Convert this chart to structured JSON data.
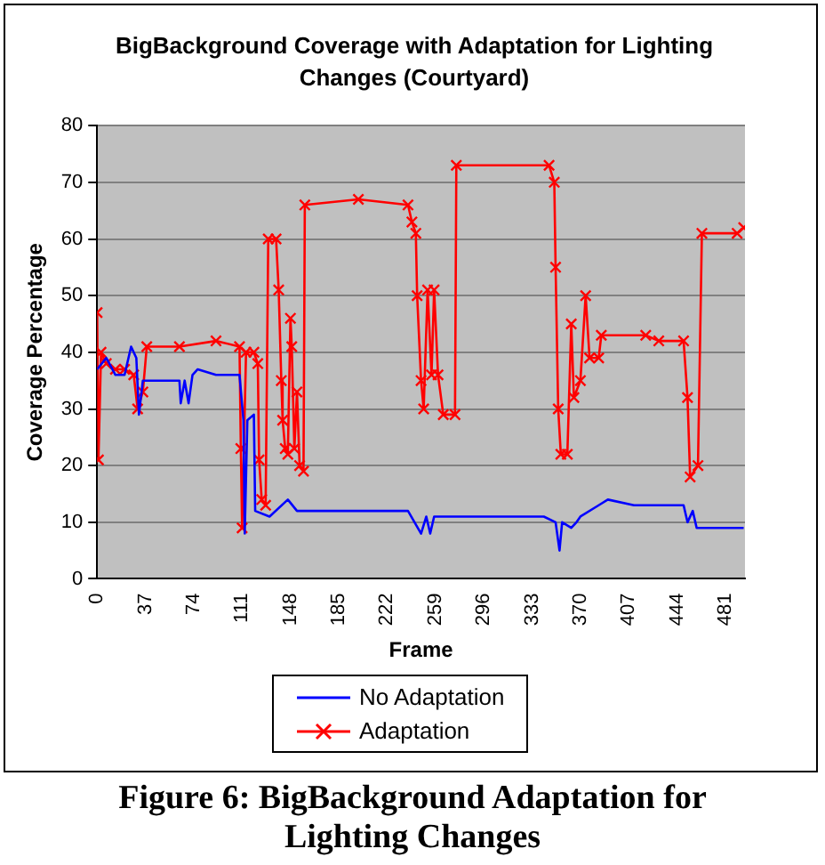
{
  "chart_data": {
    "type": "line",
    "title": "BigBackground Coverage with Adaptation for Lighting Changes (Courtyard)",
    "xlabel": "Frame",
    "ylabel": "Coverage Percentage",
    "xlim": [
      0,
      496
    ],
    "xticks": [
      0,
      37,
      74,
      111,
      148,
      185,
      222,
      259,
      296,
      333,
      370,
      407,
      444,
      481
    ],
    "ylim": [
      0,
      80
    ],
    "yticks": [
      0,
      10,
      20,
      30,
      40,
      50,
      60,
      70,
      80
    ],
    "grid": "y",
    "legend": "bottom",
    "annotations": [
      "Figure 6: BigBackground Adaptation for Lighting Changes"
    ],
    "series": [
      {
        "name": "No Adaptation",
        "color": "#0000ff",
        "marker": "none",
        "x": [
          0,
          7,
          14,
          21,
          26,
          30,
          32,
          35,
          42,
          63,
          64,
          67,
          70,
          73,
          77,
          91,
          109,
          112,
          113,
          115,
          120,
          121,
          132,
          146,
          153,
          238,
          248,
          252,
          255,
          258,
          342,
          351,
          354,
          356,
          363,
          367,
          370,
          384,
          391,
          411,
          449,
          452,
          456,
          459,
          467,
          495
        ],
        "values": [
          37,
          39,
          36,
          36,
          41,
          39,
          29,
          35,
          35,
          35,
          31,
          35,
          31,
          36,
          37,
          36,
          36,
          28,
          8,
          28,
          29,
          12,
          11,
          14,
          12,
          12,
          8,
          11,
          8,
          11,
          11,
          10,
          5,
          10,
          9,
          10,
          11,
          13,
          14,
          13,
          13,
          10,
          12,
          9,
          9,
          9
        ]
      },
      {
        "name": "Adaptation",
        "color": "#ff0000",
        "marker": "cross",
        "x": [
          0,
          1,
          3,
          7,
          14,
          21,
          28,
          31,
          35,
          38,
          63,
          91,
          109,
          110,
          111,
          114,
          120,
          123,
          124,
          126,
          129,
          131,
          137,
          139,
          141,
          142,
          144,
          146,
          148,
          149,
          151,
          153,
          155,
          158,
          159,
          200,
          238,
          241,
          244,
          245,
          248,
          250,
          253,
          256,
          258,
          261,
          265,
          274,
          275,
          346,
          350,
          351,
          353,
          355,
          360,
          363,
          365,
          370,
          374,
          377,
          384,
          386,
          420,
          430,
          449,
          452,
          454,
          460,
          463,
          490,
          495
        ],
        "values": [
          47,
          21,
          40,
          38,
          37,
          37,
          36,
          30,
          33,
          41,
          41,
          42,
          41,
          23,
          9,
          40,
          40,
          38,
          21,
          14,
          13,
          60,
          60,
          51,
          35,
          28,
          23,
          22,
          46,
          41,
          23,
          33,
          20,
          19,
          66,
          67,
          66,
          63,
          61,
          50,
          35,
          30,
          51,
          36,
          51,
          36,
          29,
          29,
          73,
          73,
          70,
          55,
          30,
          22,
          22,
          45,
          32,
          35,
          50,
          39,
          39,
          43,
          43,
          42,
          42,
          32,
          18,
          20,
          61,
          61,
          62
        ]
      }
    ]
  }
}
